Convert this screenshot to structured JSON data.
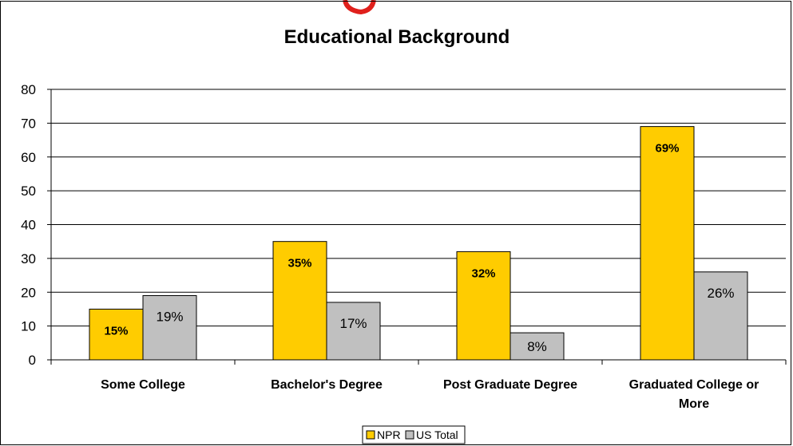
{
  "chart_data": {
    "type": "bar",
    "title": "Educational Background",
    "categories": [
      "Some College",
      "Bachelor's Degree",
      "Post Graduate Degree",
      "Graduated College or More"
    ],
    "category_lines": [
      [
        "Some College"
      ],
      [
        "Bachelor's Degree"
      ],
      [
        "Post Graduate Degree"
      ],
      [
        "Graduated College or",
        "More"
      ]
    ],
    "series": [
      {
        "name": "NPR",
        "values": [
          15,
          35,
          32,
          69
        ],
        "labels": [
          "15%",
          "35%",
          "32%",
          "69%"
        ],
        "color": "#FFCC00",
        "label_bold": true
      },
      {
        "name": "US Total",
        "values": [
          19,
          17,
          8,
          26
        ],
        "labels": [
          "19%",
          "17%",
          "8%",
          "26%"
        ],
        "color": "#C0C0C0",
        "label_bold": false
      }
    ],
    "ylim": [
      0,
      80
    ],
    "yticks": [
      "0",
      "10",
      "20",
      "30",
      "40",
      "50",
      "60",
      "70",
      "80"
    ],
    "grid": true,
    "legend": "bottom"
  }
}
